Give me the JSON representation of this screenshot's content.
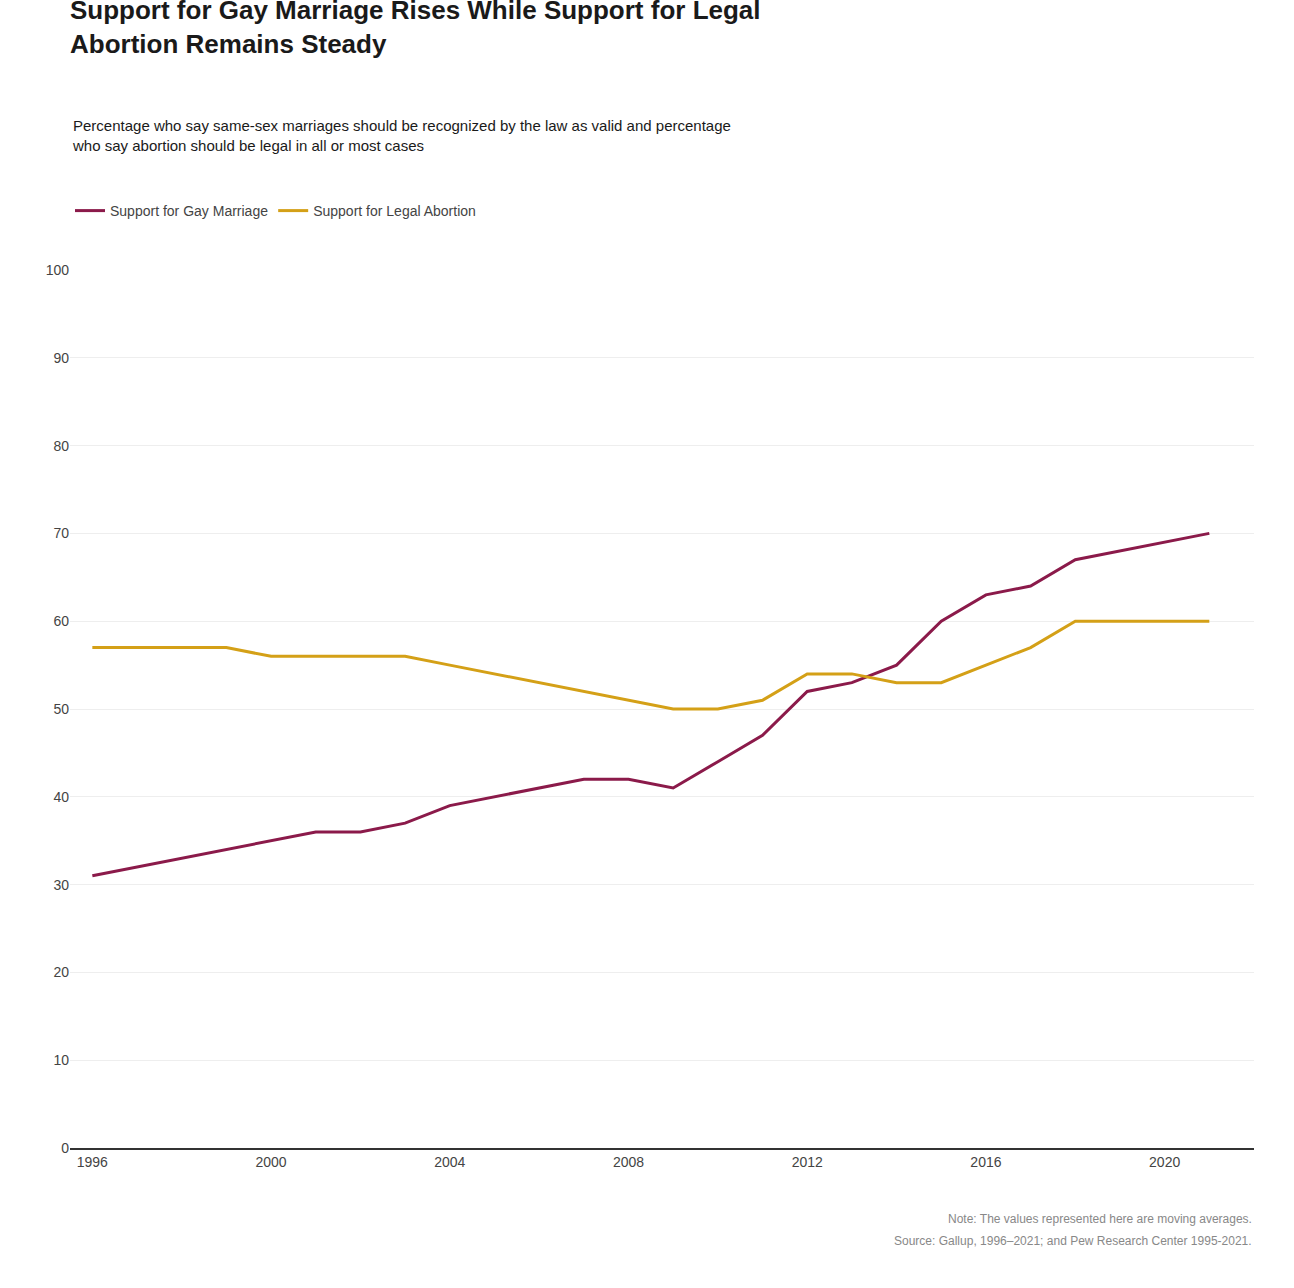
{
  "chart_data": {
    "type": "line",
    "title": "Support for Gay Marriage Rises While Support for Legal\nAbortion Remains Steady",
    "subtitle": "Percentage who say same-sex marriages should be recognized by the law as valid and percentage\nwho say abortion should be legal in all or most cases",
    "x": [
      1996,
      1997,
      1998,
      1999,
      2000,
      2001,
      2002,
      2003,
      2004,
      2005,
      2006,
      2007,
      2008,
      2009,
      2010,
      2011,
      2012,
      2013,
      2014,
      2015,
      2016,
      2017,
      2018,
      2019,
      2020,
      2021
    ],
    "series": [
      {
        "name": "Support for Gay Marriage",
        "color": "#8B1A4A",
        "values": [
          31,
          32,
          33,
          34,
          35,
          36,
          36,
          37,
          39,
          40,
          41,
          42,
          42,
          41,
          44,
          47,
          52,
          53,
          55,
          60,
          63,
          64,
          67,
          68,
          69,
          70
        ]
      },
      {
        "name": "Support for Legal Abortion",
        "color": "#D4A017",
        "values": [
          57,
          57,
          57,
          57,
          56,
          56,
          56,
          56,
          55,
          54,
          53,
          52,
          51,
          50,
          50,
          51,
          54,
          54,
          53,
          53,
          55,
          57,
          60,
          60,
          60,
          60
        ]
      }
    ],
    "xlim": [
      1995.5,
      2022.0
    ],
    "xticks": [
      1996,
      2000,
      2004,
      2008,
      2012,
      2016,
      2020
    ],
    "ylim": [
      0,
      100
    ],
    "yticks": [
      0,
      10,
      20,
      30,
      40,
      50,
      60,
      70,
      80,
      90,
      100
    ],
    "grid": true,
    "legend": "top",
    "annotations": [
      "Note: The values represented here are moving averages.",
      "Source: Gallup, 1996–2021; and Pew Research Center 1995-2021."
    ]
  }
}
